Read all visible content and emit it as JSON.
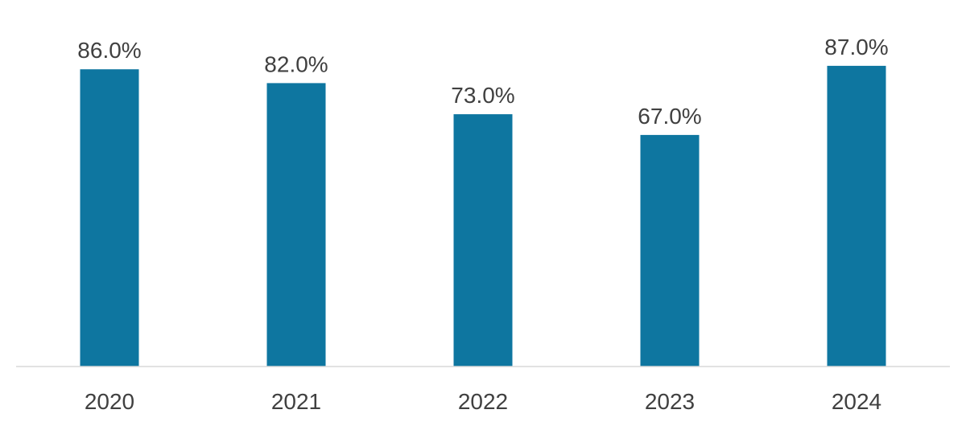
{
  "chart_data": {
    "type": "bar",
    "categories": [
      "2020",
      "2021",
      "2022",
      "2023",
      "2024"
    ],
    "values": [
      86.0,
      82.0,
      73.0,
      67.0,
      87.0
    ],
    "data_labels": [
      "86.0%",
      "82.0%",
      "73.0%",
      "67.0%",
      "87.0%"
    ],
    "title": "",
    "xlabel": "",
    "ylabel": "",
    "ylim": [
      0,
      100
    ],
    "grid": false,
    "legend": "none",
    "colors": {
      "bar": "#0e76a0",
      "axis": "#d9d9d9",
      "text": "#404040"
    }
  }
}
